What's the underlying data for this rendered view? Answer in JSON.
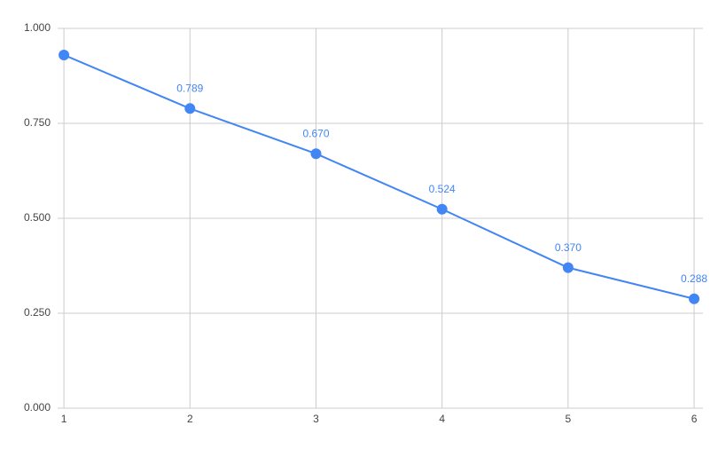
{
  "chart_data": {
    "type": "line",
    "x": [
      1,
      2,
      3,
      4,
      5,
      6
    ],
    "series": [
      {
        "name": null,
        "color": "#4285f4",
        "values": [
          0.93,
          0.789,
          0.67,
          0.524,
          0.37,
          0.288
        ],
        "value_labels": [
          null,
          "0.789",
          "0.670",
          "0.524",
          "0.370",
          "0.288"
        ]
      }
    ],
    "xlim": [
      0.95,
      6.07
    ],
    "xticks": [
      1,
      2,
      3,
      4,
      5,
      6
    ],
    "ylim": [
      0,
      1
    ],
    "yticks": [
      {
        "value": 0,
        "label": "0.000"
      },
      {
        "value": 0.25,
        "label": "0.250"
      },
      {
        "value": 0.5,
        "label": "0.500"
      },
      {
        "value": 0.75,
        "label": "0.750"
      },
      {
        "value": 1,
        "label": "1.000"
      }
    ],
    "grid": true
  }
}
